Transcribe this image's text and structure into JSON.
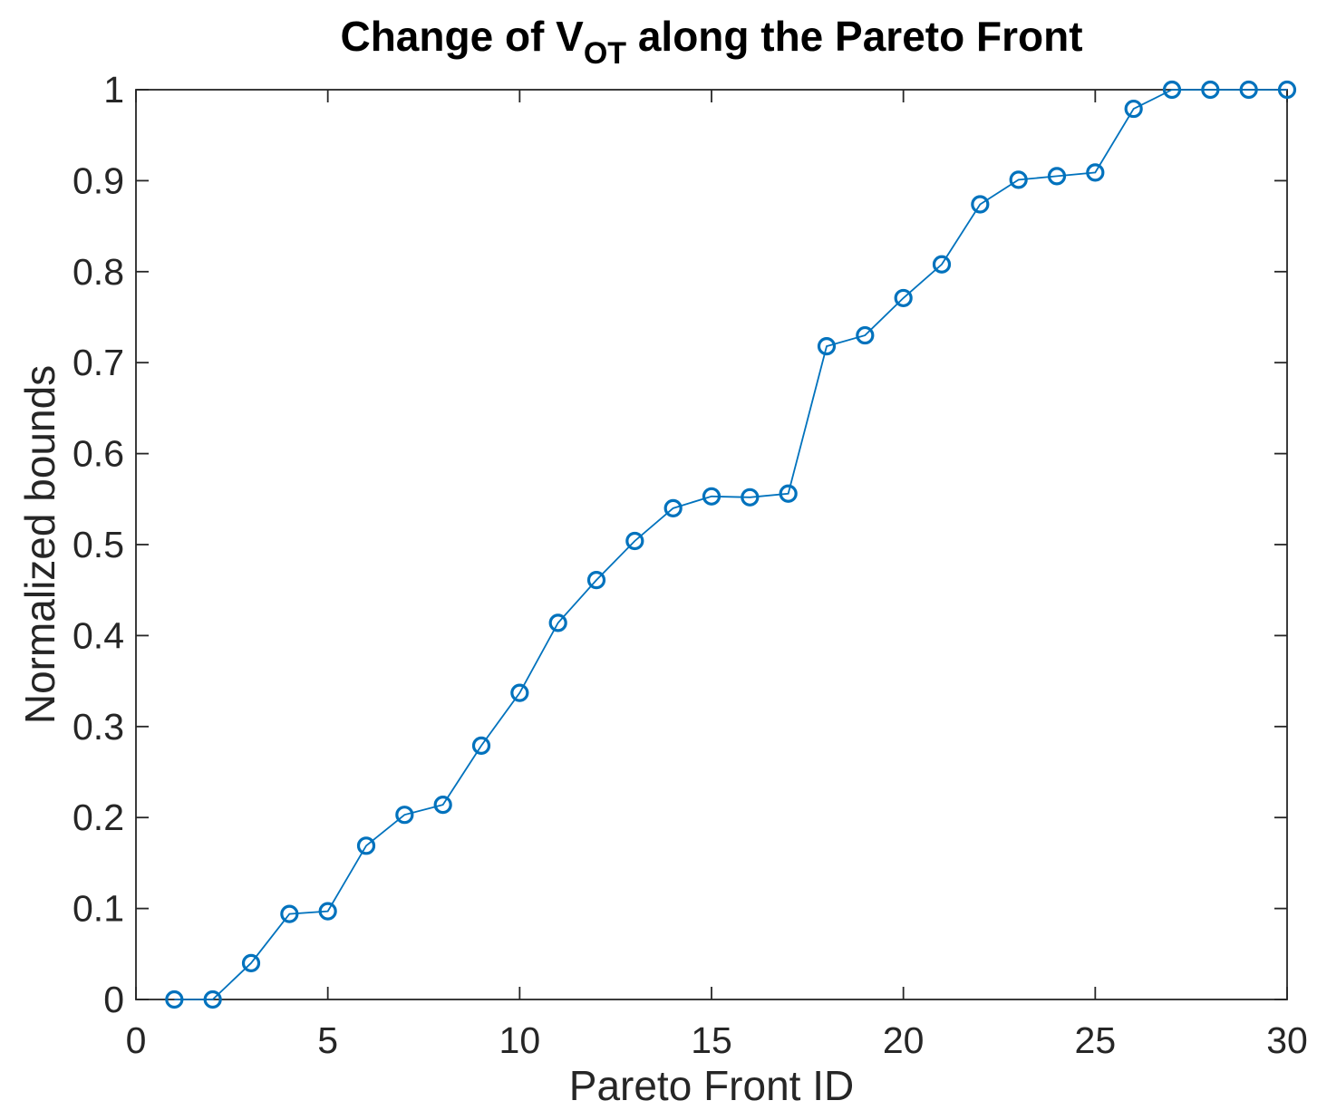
{
  "figure": {
    "background": "#FFFFFF",
    "title_parts": {
      "prefix": "Change of V",
      "subscript": "OT",
      "suffix": " along the Pareto Front"
    }
  },
  "chart_data": {
    "type": "line",
    "title": "Change of V_{OT} along the Pareto Front",
    "xlabel": "Pareto Front ID",
    "ylabel": "Normalized bounds",
    "x": [
      1,
      2,
      3,
      4,
      5,
      6,
      7,
      8,
      9,
      10,
      11,
      12,
      13,
      14,
      15,
      16,
      17,
      18,
      19,
      20,
      21,
      22,
      23,
      24,
      25,
      26,
      27,
      28,
      29,
      30
    ],
    "y": [
      0.0,
      0.0,
      0.04,
      0.094,
      0.097,
      0.169,
      0.203,
      0.214,
      0.279,
      0.337,
      0.414,
      0.461,
      0.504,
      0.54,
      0.553,
      0.552,
      0.556,
      0.718,
      0.73,
      0.771,
      0.808,
      0.874,
      0.901,
      0.905,
      0.909,
      0.979,
      1.0,
      1.0,
      1.0,
      1.0
    ],
    "xlim": [
      0,
      30
    ],
    "ylim": [
      0,
      1
    ],
    "xticks": [
      0,
      5,
      10,
      15,
      20,
      25,
      30
    ],
    "xtick_labels": [
      "0",
      "5",
      "10",
      "15",
      "20",
      "25",
      "30"
    ],
    "yticks": [
      0,
      0.1,
      0.2,
      0.3,
      0.4,
      0.5,
      0.6,
      0.7,
      0.8,
      0.9,
      1
    ],
    "ytick_labels": [
      "0",
      "0.1",
      "0.2",
      "0.3",
      "0.4",
      "0.5",
      "0.6",
      "0.7",
      "0.8",
      "0.9",
      "1"
    ],
    "grid": false,
    "legend": null,
    "marker": "open-circle",
    "line_color": "#0072BD",
    "axis_color": "#262626",
    "box": true
  }
}
